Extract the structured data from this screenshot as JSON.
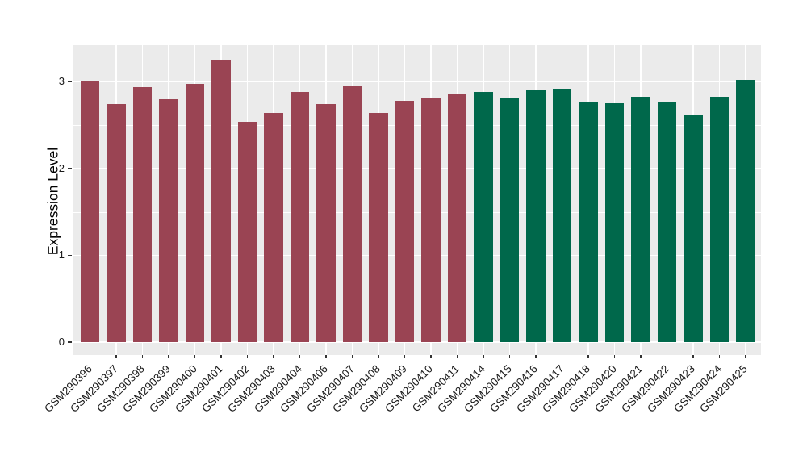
{
  "chart_data": {
    "type": "bar",
    "title": "",
    "xlabel": "",
    "ylabel": "Expression Level",
    "ylim": [
      0,
      3.41
    ],
    "yticks": [
      0,
      1,
      2,
      3
    ],
    "minor_ticks": [
      0.5,
      1.5,
      2.5
    ],
    "legend": "none",
    "grid": "white major and minor horizontal lines plus vertical line per category on grey panel",
    "panel_background": "#EBEBEB",
    "gridline_color": "#FFFFFF",
    "categories": [
      "GSM290396",
      "GSM290397",
      "GSM290398",
      "GSM290399",
      "GSM290400",
      "GSM290401",
      "GSM290402",
      "GSM290403",
      "GSM290404",
      "GSM290406",
      "GSM290407",
      "GSM290408",
      "GSM290409",
      "GSM290410",
      "GSM290411",
      "GSM290414",
      "GSM290415",
      "GSM290416",
      "GSM290417",
      "GSM290418",
      "GSM290420",
      "GSM290421",
      "GSM290422",
      "GSM290423",
      "GSM290424",
      "GSM290425"
    ],
    "values": [
      3.0,
      2.74,
      2.94,
      2.8,
      2.97,
      3.25,
      2.54,
      2.64,
      2.88,
      2.74,
      2.96,
      2.64,
      2.78,
      2.81,
      2.86,
      2.88,
      2.82,
      2.91,
      2.92,
      2.77,
      2.75,
      2.83,
      2.76,
      2.62,
      2.83,
      3.02
    ],
    "groups": [
      "maroon",
      "maroon",
      "maroon",
      "maroon",
      "maroon",
      "maroon",
      "maroon",
      "maroon",
      "maroon",
      "maroon",
      "maroon",
      "maroon",
      "maroon",
      "maroon",
      "maroon",
      "green",
      "green",
      "green",
      "green",
      "green",
      "green",
      "green",
      "green",
      "green",
      "green",
      "green"
    ],
    "group_colors": {
      "maroon": "#9A4453",
      "green": "#00684B"
    }
  }
}
